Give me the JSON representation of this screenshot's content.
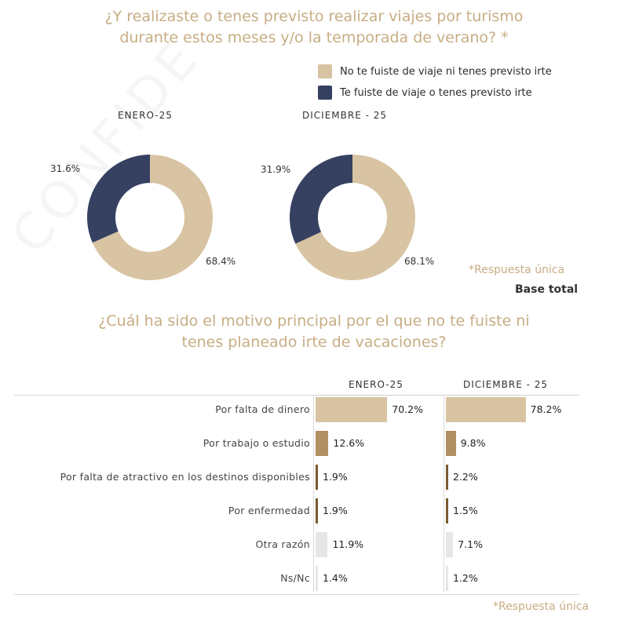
{
  "watermark": "CONFIDE",
  "chart_data": [
    {
      "type": "pie",
      "title": "¿Y realizaste o tenes previsto realizar viajes por turismo durante estos meses y/o la temporada de verano? *",
      "legend": [
        {
          "name": "No te fuiste de viaje ni tenes previsto irte",
          "color": "#d8c4a2"
        },
        {
          "name": "Te fuiste de viaje o tenes previsto irte",
          "color": "#364162"
        }
      ],
      "charts": [
        {
          "label": "ENERO-25",
          "values": [
            68.4,
            31.6
          ],
          "value_labels": [
            "68.4%",
            "31.6%"
          ]
        },
        {
          "label": "DICIEMBRE - 25",
          "values": [
            68.1,
            31.9
          ],
          "value_labels": [
            "68.1%",
            "31.9%"
          ]
        }
      ],
      "note": "*Respuesta única",
      "base": "Base total"
    },
    {
      "type": "bar",
      "title": "¿Cuál ha sido el motivo principal por el que no te fuiste ni tenes planeado irte de vacaciones?",
      "series_headers": [
        "ENERO-25",
        "DICIEMBRE - 25"
      ],
      "categories": [
        "Por falta de dinero",
        "Por trabajo o estudio",
        "Por falta de atractivo en los destinos disponibles",
        "Por enfermedad",
        "Otra razón",
        "Ns/Nc"
      ],
      "series": [
        {
          "name": "ENERO-25",
          "values": [
            70.2,
            12.6,
            1.9,
            1.9,
            11.9,
            1.4
          ],
          "labels": [
            "70.2%",
            "12.6%",
            "1.9%",
            "1.9%",
            "11.9%",
            "1.4%"
          ]
        },
        {
          "name": "DICIEMBRE - 25",
          "values": [
            78.2,
            9.8,
            2.2,
            1.5,
            7.1,
            1.2
          ],
          "labels": [
            "78.2%",
            "9.8%",
            "2.2%",
            "1.5%",
            "7.1%",
            "1.2%"
          ]
        }
      ],
      "bar_colors": [
        "#d8c4a2",
        "#b08f63",
        "#7a5a2e",
        "#7a5a2e",
        "#e6e6e6",
        "#e6e6e6"
      ],
      "note": "*Respuesta única"
    }
  ]
}
